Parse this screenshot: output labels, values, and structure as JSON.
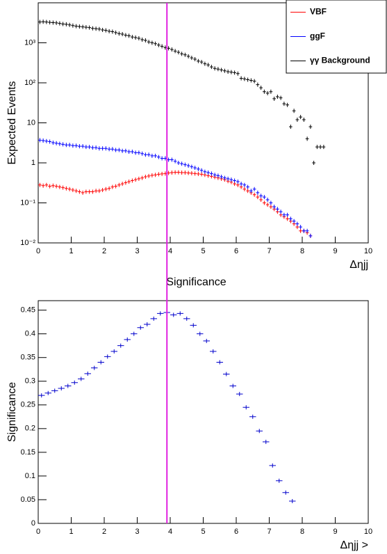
{
  "chart_data": [
    {
      "type": "scatter",
      "ylabel": "Expected Events",
      "xlabel": "Δηjj",
      "log_y": true,
      "xlim": [
        0,
        10
      ],
      "xticks": [
        0,
        1,
        2,
        3,
        4,
        5,
        6,
        7,
        8,
        9,
        10
      ],
      "ylim": [
        0.01,
        10000
      ],
      "yticks": [
        {
          "value": 0.01,
          "label": "10⁻²"
        },
        {
          "value": 0.1,
          "label": "10⁻¹"
        },
        1,
        10,
        {
          "value": 100,
          "label": "10²"
        },
        {
          "value": 1000,
          "label": "10³"
        }
      ],
      "bin_width": 0.1,
      "vline": 3.9,
      "vline_color": "#e020e0",
      "legend": "top-right",
      "x": [
        0.05,
        0.15,
        0.25,
        0.35,
        0.45,
        0.55,
        0.65,
        0.75,
        0.85,
        0.95,
        1.05,
        1.15,
        1.25,
        1.35,
        1.45,
        1.55,
        1.65,
        1.75,
        1.85,
        1.95,
        2.05,
        2.15,
        2.25,
        2.35,
        2.45,
        2.55,
        2.65,
        2.75,
        2.85,
        2.95,
        3.05,
        3.15,
        3.25,
        3.35,
        3.45,
        3.55,
        3.65,
        3.75,
        3.85,
        3.95,
        4.05,
        4.15,
        4.25,
        4.35,
        4.45,
        4.55,
        4.65,
        4.75,
        4.85,
        4.95,
        5.05,
        5.15,
        5.25,
        5.35,
        5.45,
        5.55,
        5.65,
        5.75,
        5.85,
        5.95,
        6.05,
        6.15,
        6.25,
        6.35,
        6.45,
        6.55,
        6.65,
        6.75,
        6.85,
        6.95,
        7.05,
        7.15,
        7.25,
        7.35,
        7.45,
        7.55,
        7.65,
        7.75,
        7.85,
        7.95,
        8.05,
        8.15,
        8.25,
        8.35,
        8.45,
        8.55,
        8.65
      ],
      "series": [
        {
          "name": "VBF",
          "color": "#ff0000",
          "values": [
            0.28,
            0.27,
            0.28,
            0.26,
            0.27,
            0.26,
            0.25,
            0.24,
            0.23,
            0.22,
            0.21,
            0.2,
            0.19,
            0.18,
            0.19,
            0.19,
            0.19,
            0.2,
            0.2,
            0.21,
            0.22,
            0.23,
            0.25,
            0.26,
            0.28,
            0.3,
            0.32,
            0.34,
            0.36,
            0.38,
            0.4,
            0.42,
            0.45,
            0.47,
            0.49,
            0.5,
            0.52,
            0.53,
            0.54,
            0.56,
            0.57,
            0.58,
            0.58,
            0.57,
            0.57,
            0.56,
            0.55,
            0.54,
            0.53,
            0.52,
            0.5,
            0.48,
            0.46,
            0.44,
            0.42,
            0.4,
            0.38,
            0.35,
            0.33,
            0.3,
            0.28,
            0.25,
            0.22,
            0.2,
            0.18,
            0.16,
            0.14,
            0.12,
            0.1,
            0.09,
            0.08,
            0.07,
            0.06,
            0.05,
            0.045,
            0.04,
            0.035,
            0.03,
            0.025,
            0.02,
            0.02,
            0.018,
            0.015,
            null,
            null,
            null,
            null
          ]
        },
        {
          "name": "ggF",
          "color": "#0000ff",
          "values": [
            3.7,
            3.6,
            3.5,
            3.4,
            3.2,
            3.1,
            3.0,
            2.9,
            2.8,
            2.8,
            2.7,
            2.7,
            2.6,
            2.6,
            2.5,
            2.5,
            2.4,
            2.4,
            2.3,
            2.3,
            2.3,
            2.2,
            2.2,
            2.1,
            2.1,
            2.0,
            2.0,
            1.9,
            1.9,
            1.8,
            1.8,
            1.7,
            1.6,
            1.6,
            1.5,
            1.5,
            1.4,
            1.3,
            1.3,
            1.2,
            1.2,
            1.1,
            1.0,
            0.95,
            0.9,
            0.85,
            0.8,
            0.75,
            0.7,
            0.65,
            0.6,
            0.57,
            0.54,
            0.5,
            0.48,
            0.45,
            0.42,
            0.4,
            0.38,
            0.36,
            0.34,
            0.3,
            0.28,
            0.25,
            0.2,
            0.22,
            0.18,
            0.15,
            0.14,
            0.12,
            0.1,
            0.08,
            0.07,
            0.06,
            0.05,
            0.05,
            0.04,
            0.035,
            0.03,
            0.025,
            0.02,
            0.02,
            0.015,
            null,
            null,
            null,
            null
          ]
        },
        {
          "name": "γγ Background",
          "color": "#000000",
          "values": [
            3300,
            3350,
            3300,
            3250,
            3200,
            3150,
            3050,
            2950,
            2900,
            2800,
            2700,
            2600,
            2550,
            2500,
            2450,
            2400,
            2300,
            2250,
            2200,
            2100,
            2050,
            1950,
            1900,
            1800,
            1700,
            1650,
            1550,
            1500,
            1400,
            1350,
            1300,
            1200,
            1150,
            1050,
            1000,
            950,
            880,
            820,
            760,
            730,
            680,
            620,
            580,
            530,
            500,
            460,
            420,
            390,
            350,
            330,
            300,
            280,
            250,
            230,
            220,
            210,
            200,
            190,
            185,
            180,
            170,
            130,
            125,
            120,
            115,
            110,
            90,
            75,
            60,
            55,
            60,
            40,
            45,
            42,
            30,
            28,
            8,
            20,
            12,
            14,
            12,
            4,
            8,
            1,
            2.5,
            2.5,
            2.5
          ]
        }
      ]
    },
    {
      "type": "scatter",
      "title": "Significance",
      "ylabel": "Significance",
      "xlabel": "Δηjj >",
      "xlim": [
        0,
        10
      ],
      "xticks": [
        0,
        1,
        2,
        3,
        4,
        5,
        6,
        7,
        8,
        9,
        10
      ],
      "ylim": [
        0,
        0.47
      ],
      "yticks": [
        0,
        0.05,
        0.1,
        0.15,
        0.2,
        0.25,
        0.3,
        0.35,
        0.4,
        0.45
      ],
      "bin_width": 0.2,
      "x": [
        0.1,
        0.3,
        0.5,
        0.7,
        0.9,
        1.1,
        1.3,
        1.5,
        1.7,
        1.9,
        2.1,
        2.3,
        2.5,
        2.7,
        2.9,
        3.1,
        3.3,
        3.5,
        3.7,
        3.9,
        4.1,
        4.3,
        4.5,
        4.7,
        4.9,
        5.1,
        5.3,
        5.5,
        5.7,
        5.9,
        6.1,
        6.3,
        6.5,
        6.7,
        6.9,
        7.1,
        7.3,
        7.5,
        7.7
      ],
      "series": [
        {
          "color": "#0000cc",
          "values": [
            0.27,
            0.275,
            0.28,
            0.285,
            0.29,
            0.297,
            0.305,
            0.316,
            0.328,
            0.34,
            0.352,
            0.363,
            0.375,
            0.388,
            0.4,
            0.413,
            0.42,
            0.432,
            0.443,
            0.445,
            0.44,
            0.443,
            0.432,
            0.418,
            0.4,
            0.385,
            0.363,
            0.34,
            0.315,
            0.29,
            0.273,
            0.245,
            0.225,
            0.195,
            0.172,
            0.122,
            0.09,
            0.065,
            0.047
          ]
        }
      ]
    }
  ]
}
